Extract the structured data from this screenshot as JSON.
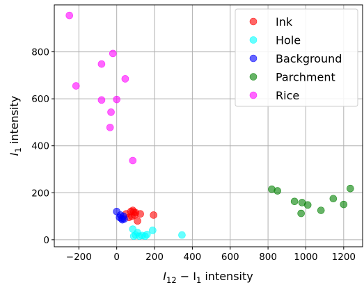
{
  "chart_data": {
    "type": "scatter",
    "xlabel_main": "I",
    "xlabel_sub1": "12",
    "xlabel_mid": " − I",
    "xlabel_sub2": "1",
    "xlabel_tail": " intensity",
    "ylabel_main": "I",
    "ylabel_sub": "1",
    "ylabel_tail": " intensity",
    "xlim": [
      -330,
      1300
    ],
    "ylim": [
      -30,
      1000
    ],
    "xticks": [
      -200,
      0,
      200,
      400,
      600,
      800,
      1000,
      1200
    ],
    "yticks": [
      0,
      200,
      400,
      600,
      800
    ],
    "grid": true,
    "legend_position": "top-right",
    "series": [
      {
        "name": "Ink",
        "color": "#ff0000",
        "points": [
          [
            50,
            110
          ],
          [
            65,
            95
          ],
          [
            75,
            120
          ],
          [
            80,
            100
          ],
          [
            85,
            125
          ],
          [
            90,
            118
          ],
          [
            95,
            105
          ],
          [
            100,
            115
          ],
          [
            110,
            80
          ],
          [
            125,
            110
          ],
          [
            195,
            105
          ]
        ]
      },
      {
        "name": "Hole",
        "color": "#00ffff",
        "points": [
          [
            85,
            45
          ],
          [
            90,
            15
          ],
          [
            100,
            20
          ],
          [
            110,
            30
          ],
          [
            120,
            15
          ],
          [
            135,
            18
          ],
          [
            150,
            15
          ],
          [
            160,
            22
          ],
          [
            190,
            40
          ],
          [
            345,
            20
          ]
        ]
      },
      {
        "name": "Background",
        "color": "#0000ff",
        "points": [
          [
            0,
            120
          ],
          [
            15,
            95
          ],
          [
            20,
            105
          ],
          [
            25,
            90
          ],
          [
            30,
            85
          ],
          [
            35,
            100
          ],
          [
            40,
            88
          ]
        ]
      },
      {
        "name": "Parchment",
        "color": "#008000",
        "points": [
          [
            820,
            215
          ],
          [
            850,
            208
          ],
          [
            940,
            163
          ],
          [
            975,
            112
          ],
          [
            980,
            158
          ],
          [
            1010,
            148
          ],
          [
            1080,
            125
          ],
          [
            1145,
            175
          ],
          [
            1200,
            150
          ],
          [
            1235,
            218
          ]
        ]
      },
      {
        "name": "Rice",
        "color": "#ff00ff",
        "points": [
          [
            -250,
            955
          ],
          [
            -215,
            655
          ],
          [
            -80,
            748
          ],
          [
            -80,
            595
          ],
          [
            -30,
            543
          ],
          [
            -35,
            478
          ],
          [
            -20,
            793
          ],
          [
            0,
            597
          ],
          [
            45,
            685
          ],
          [
            85,
            337
          ]
        ]
      }
    ]
  }
}
